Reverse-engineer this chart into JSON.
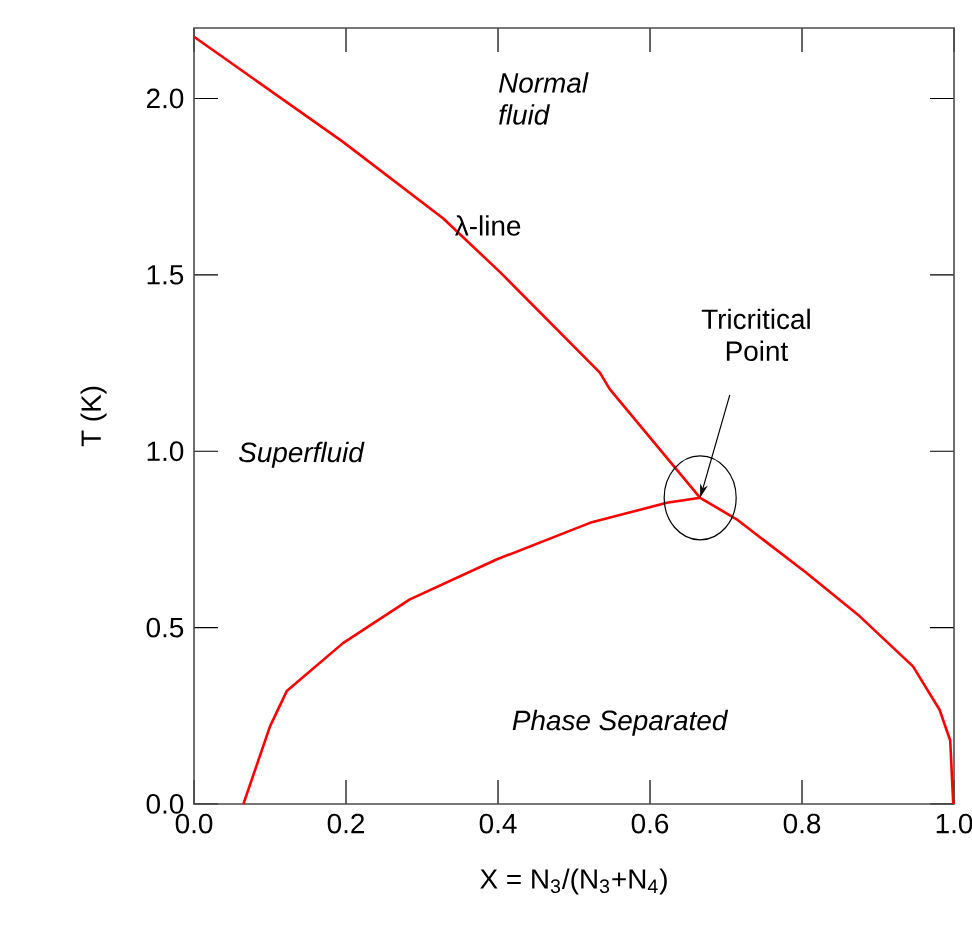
{
  "chart_data": {
    "type": "line",
    "xlabel": "X = N$_{3}$/(N$_{3}$+N$_{4}$)",
    "ylabel": "T (K)",
    "xlim": [
      0,
      1
    ],
    "ylim": [
      0,
      2.2
    ],
    "xticks": [
      {
        "value": 0,
        "label": "0.0"
      },
      {
        "value": 0.2,
        "label": "0.2"
      },
      {
        "value": 0.4,
        "label": "0.4"
      },
      {
        "value": 0.6,
        "label": "0.6"
      },
      {
        "value": 0.8,
        "label": "0.8"
      },
      {
        "value": 1,
        "label": "1.0"
      }
    ],
    "yticks": [
      {
        "value": 0,
        "label": "0.0"
      },
      {
        "value": 0.5,
        "label": "0.5"
      },
      {
        "value": 1,
        "label": "1.0"
      },
      {
        "value": 1.5,
        "label": "1.5"
      },
      {
        "value": 2,
        "label": "2.0"
      }
    ],
    "marker": "none",
    "line_style": "solid",
    "series": [
      {
        "color": "#ff0000",
        "x": [
          0,
          0.196,
          0.328,
          0.403,
          0.534,
          0.547,
          0.666
        ],
        "values": [
          2.175,
          1.877,
          1.66,
          1.507,
          1.223,
          1.176,
          0.868
        ]
      },
      {
        "color": "#ff0000",
        "x": [
          0.065,
          0.1,
          0.122,
          0.196,
          0.284,
          0.398,
          0.521,
          0.622,
          0.666,
          0.714,
          0.806,
          0.876,
          0.946,
          0.981,
          0.995,
          0.999
        ],
        "values": [
          0,
          0.22,
          0.32,
          0.456,
          0.58,
          0.693,
          0.797,
          0.854,
          0.868,
          0.807,
          0.655,
          0.532,
          0.39,
          0.267,
          0.18,
          0
        ]
      }
    ],
    "annotations": [
      "Normal fluid",
      {
        "text": "λ-line",
        "x": 0.34,
        "y": 1.64
      },
      {
        "text": "Tricritical Point",
        "x": 0.666,
        "y": 0.868
      },
      "Superfluid",
      "Phase Separated"
    ]
  }
}
